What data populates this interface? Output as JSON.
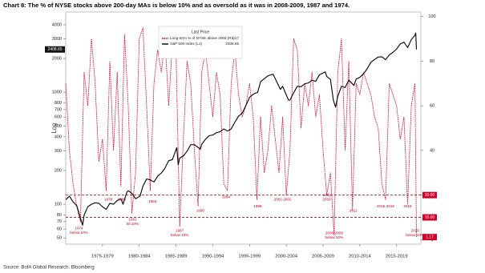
{
  "chart_data": {
    "type": "line",
    "title": "Chart 8: The % of NYSE stocks above 200-day MAs is below 10% and as oversold as it was in 2008-2009, 1987 and 1974.",
    "source": "Source: BofA Global Research, Bloomberg",
    "y_label": "Log",
    "legend_title": "Last Price",
    "log_y": true,
    "xlim": [
      1972.5,
      2020.8
    ],
    "xticks": [
      {
        "value": 1977.5,
        "label": "1975-1979"
      },
      {
        "value": 1982.5,
        "label": "1980-1984"
      },
      {
        "value": 1987.5,
        "label": "1985-1989"
      },
      {
        "value": 1992.5,
        "label": "1990-1994"
      },
      {
        "value": 1997.5,
        "label": "1995-1999"
      },
      {
        "value": 2002.5,
        "label": "2000-2004"
      },
      {
        "value": 2007.5,
        "label": "2005-2009"
      },
      {
        "value": 2012.5,
        "label": "2010-2014"
      },
      {
        "value": 2017.5,
        "label": "2015-2019"
      }
    ],
    "ylim": [
      44,
      5200
    ],
    "yticks": [
      50,
      60,
      70,
      80,
      100,
      200,
      300,
      400,
      500,
      600,
      700,
      800,
      1000,
      2000,
      3000,
      4000
    ],
    "y2lim": [
      -2,
      102
    ],
    "y2ticks": [
      0,
      20,
      40,
      60,
      80,
      100
    ],
    "reference_lines": [
      {
        "value": 20,
        "label": "20.00"
      },
      {
        "value": 10,
        "label": "10.00"
      }
    ],
    "series": [
      {
        "name": "Long-term % of NYSE  above 200d  (R1)",
        "last_label": "1.17",
        "color": "#d4002a",
        "axis": "y2",
        "dashed": true,
        "x": [
          1972.5,
          1973,
          1973.5,
          1974,
          1974.5,
          1975,
          1975.5,
          1976,
          1976.5,
          1977,
          1977.5,
          1978,
          1978.5,
          1979,
          1979.5,
          1980,
          1980.5,
          1981,
          1981.5,
          1982,
          1982.5,
          1983,
          1983.5,
          1984,
          1984.5,
          1985,
          1985.5,
          1986,
          1986.5,
          1987,
          1987.5,
          1988,
          1988.5,
          1989,
          1989.5,
          1990,
          1990.5,
          1991,
          1991.5,
          1992,
          1992.5,
          1993,
          1993.5,
          1994,
          1994.5,
          1995,
          1995.5,
          1996,
          1996.5,
          1997,
          1997.5,
          1998,
          1998.5,
          1999,
          1999.5,
          2000,
          2000.5,
          2001,
          2001.5,
          2002,
          2002.5,
          2003,
          2003.5,
          2004,
          2004.5,
          2005,
          2005.5,
          2006,
          2006.5,
          2007,
          2007.5,
          2008,
          2008.5,
          2009,
          2009.5,
          2010,
          2010.5,
          2011,
          2011.5,
          2012,
          2012.5,
          2013,
          2013.5,
          2014,
          2014.5,
          2015,
          2015.5,
          2016,
          2016.5,
          2017,
          2017.5,
          2018,
          2018.5,
          2019,
          2019.5,
          2020,
          2020.2
        ],
        "values": [
          70,
          40,
          25,
          15,
          8,
          75,
          60,
          90,
          70,
          35,
          45,
          22,
          80,
          40,
          75,
          24,
          92,
          60,
          12,
          30,
          90,
          95,
          60,
          22,
          70,
          85,
          75,
          90,
          60,
          88,
          85,
          6,
          45,
          80,
          70,
          40,
          15,
          75,
          85,
          70,
          55,
          75,
          65,
          25,
          22,
          70,
          85,
          65,
          55,
          60,
          70,
          55,
          18,
          55,
          30,
          40,
          60,
          45,
          30,
          55,
          20,
          40,
          90,
          85,
          50,
          70,
          60,
          75,
          55,
          65,
          40,
          20,
          30,
          2,
          75,
          90,
          40,
          80,
          13,
          70,
          65,
          75,
          70,
          65,
          55,
          50,
          25,
          18,
          70,
          65,
          60,
          45,
          55,
          16,
          60,
          70,
          1.17
        ]
      },
      {
        "name": "S&P 500 Index  (L1)",
        "last_label": "2408.65",
        "color": "#000000",
        "axis": "y",
        "x": [
          1972.5,
          1973,
          1973.5,
          1974,
          1974.5,
          1974.8,
          1975,
          1975.5,
          1976,
          1976.5,
          1977,
          1977.5,
          1978,
          1978.5,
          1979,
          1979.5,
          1980,
          1980.3,
          1980.8,
          1981,
          1981.5,
          1982,
          1982.6,
          1983,
          1983.5,
          1984,
          1984.5,
          1985,
          1985.5,
          1986,
          1986.5,
          1987,
          1987.6,
          1987.8,
          1988,
          1988.5,
          1989,
          1989.5,
          1990,
          1990.8,
          1991,
          1991.5,
          1992,
          1992.5,
          1993,
          1993.5,
          1994,
          1994.5,
          1995,
          1995.5,
          1996,
          1996.5,
          1997,
          1997.5,
          1998,
          1998.6,
          1999,
          1999.5,
          2000,
          2000.7,
          2001,
          2001.7,
          2002,
          2002.8,
          2003,
          2003.5,
          2004,
          2004.5,
          2005,
          2005.5,
          2006,
          2006.5,
          2007,
          2007.8,
          2008,
          2008.5,
          2008.9,
          2009.2,
          2009.5,
          2010,
          2010.5,
          2011,
          2011.7,
          2012,
          2012.5,
          2013,
          2013.5,
          2014,
          2014.5,
          2015,
          2015.5,
          2016,
          2016.5,
          2017,
          2017.5,
          2018,
          2018.5,
          2019,
          2019.5,
          2020,
          2020.1,
          2020.2
        ],
        "values": [
          110,
          118,
          105,
          97,
          75,
          65,
          80,
          95,
          100,
          103,
          102,
          95,
          90,
          102,
          100,
          108,
          112,
          100,
          128,
          132,
          125,
          112,
          118,
          145,
          168,
          165,
          158,
          178,
          190,
          210,
          245,
          250,
          320,
          225,
          258,
          270,
          297,
          340,
          340,
          310,
          343,
          380,
          410,
          415,
          435,
          445,
          470,
          450,
          470,
          540,
          610,
          650,
          760,
          900,
          960,
          1000,
          1240,
          1320,
          1400,
          1450,
          1320,
          1060,
          1130,
          850,
          850,
          990,
          1130,
          1120,
          1190,
          1210,
          1280,
          1250,
          1430,
          1520,
          1380,
          1300,
          850,
          735,
          920,
          1130,
          1100,
          1280,
          1150,
          1310,
          1360,
          1460,
          1620,
          1850,
          1960,
          2060,
          2070,
          1950,
          2150,
          2270,
          2430,
          2700,
          2800,
          2500,
          2950,
          3230,
          3380,
          2408.65
        ]
      }
    ],
    "annotations": [
      {
        "lines": [
          "1974",
          "below 10%"
        ],
        "x": 1974.3,
        "y": 5
      },
      {
        "lines": [
          "1978"
        ],
        "x": 1978.3,
        "y": 18
      },
      {
        "lines": [
          "1980"
        ],
        "x": 1980.1,
        "y": 18
      },
      {
        "lines": [
          "1981",
          "hit 10%"
        ],
        "x": 1981.6,
        "y": 9
      },
      {
        "lines": [
          "1984"
        ],
        "x": 1984.3,
        "y": 17
      },
      {
        "lines": [
          "1987",
          "below 10%"
        ],
        "x": 1988.0,
        "y": 4
      },
      {
        "lines": [
          "1990"
        ],
        "x": 1990.8,
        "y": 13
      },
      {
        "lines": [
          "1994"
        ],
        "x": 1994.3,
        "y": 19
      },
      {
        "lines": [
          "1998"
        ],
        "x": 1998.6,
        "y": 15
      },
      {
        "lines": [
          "2001-2002"
        ],
        "x": 2002.0,
        "y": 18
      },
      {
        "lines": [
          "early",
          "2008"
        ],
        "x": 2008.0,
        "y": 20
      },
      {
        "lines": [
          "2008-2009",
          "below 10%"
        ],
        "x": 2009.0,
        "y": 3
      },
      {
        "lines": [
          "2011"
        ],
        "x": 2011.6,
        "y": 13
      },
      {
        "lines": [
          "2015-2016"
        ],
        "x": 2016.0,
        "y": 15
      },
      {
        "lines": [
          "2018"
        ],
        "x": 2019.0,
        "y": 15
      },
      {
        "lines": [
          "2020",
          "below 10%"
        ],
        "x": 2020.0,
        "y": 4
      }
    ]
  }
}
